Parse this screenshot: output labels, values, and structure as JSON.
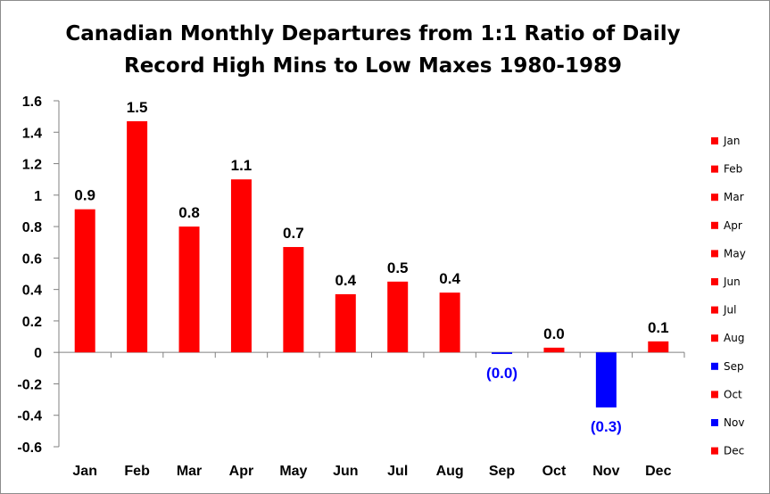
{
  "chart_data": {
    "type": "bar",
    "title_lines": [
      "Canadian Monthly Departures from 1:1 Ratio of Daily",
      "Record High Mins to Low Maxes 1980-1989"
    ],
    "xlabel": "",
    "ylabel": "",
    "ylim": [
      -0.6,
      1.6
    ],
    "yticks": [
      "1.6",
      "1.4",
      "1.2",
      "1",
      "0.8",
      "0.6",
      "0.4",
      "0.2",
      "0",
      "-0.2",
      "-0.4",
      "-0.6"
    ],
    "ytick_values": [
      1.6,
      1.4,
      1.2,
      1.0,
      0.8,
      0.6,
      0.4,
      0.2,
      0,
      -0.2,
      -0.4,
      -0.6
    ],
    "grid": false,
    "legend_position": "right",
    "categories": [
      "Jan",
      "Feb",
      "Mar",
      "Apr",
      "May",
      "Jun",
      "Jul",
      "Aug",
      "Sep",
      "Oct",
      "Nov",
      "Dec"
    ],
    "values": [
      0.91,
      1.47,
      0.8,
      1.1,
      0.67,
      0.37,
      0.45,
      0.38,
      -0.01,
      0.03,
      -0.35,
      0.07
    ],
    "data_labels": [
      "0.9",
      "1.5",
      "0.8",
      "1.1",
      "0.7",
      "0.4",
      "0.5",
      "0.4",
      "(0.0)",
      "0.0",
      "(0.3)",
      "0.1"
    ],
    "colors": {
      "positive": "#ff0000",
      "negative": "#0000ff",
      "negative_label": "#0000ff",
      "positive_label": "#000000"
    },
    "legend": [
      "Jan",
      "Feb",
      "Mar",
      "Apr",
      "May",
      "Jun",
      "Jul",
      "Aug",
      "Sep",
      "Oct",
      "Nov",
      "Dec"
    ]
  }
}
